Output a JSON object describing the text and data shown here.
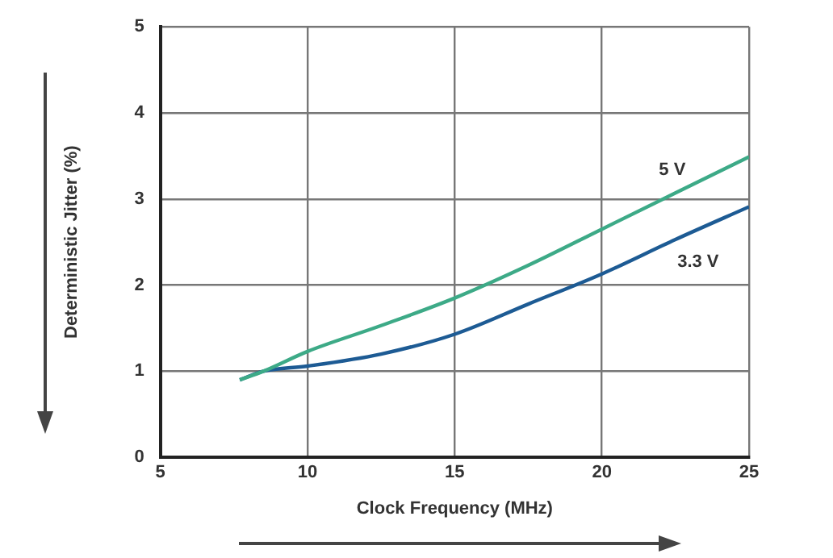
{
  "chart_data": {
    "type": "line",
    "xlabel": "Clock Frequency (MHz)",
    "ylabel": "Deterministic Jitter (%)",
    "xlim": [
      5,
      25
    ],
    "xticks": [
      5,
      10,
      15,
      20,
      25
    ],
    "ylim": [
      0,
      5
    ],
    "yticks": [
      0,
      1,
      2,
      3,
      4,
      5
    ],
    "grid": true,
    "legend": false,
    "marker": "none",
    "line_style": "solid",
    "series": [
      {
        "name": "5 V",
        "color": "#3daa87",
        "x": [
          7.7,
          8.5,
          10,
          12.5,
          15,
          17.5,
          20,
          22.5,
          25
        ],
        "values": [
          0.9,
          1.0,
          1.23,
          1.53,
          1.85,
          2.23,
          2.65,
          3.07,
          3.49
        ]
      },
      {
        "name": "3.3 V",
        "color": "#1d5b94",
        "x": [
          7.7,
          8.5,
          10,
          12.5,
          15,
          17.5,
          20,
          22.5,
          25
        ],
        "values": [
          0.9,
          1.0,
          1.06,
          1.2,
          1.43,
          1.78,
          2.13,
          2.53,
          2.91
        ]
      }
    ]
  }
}
